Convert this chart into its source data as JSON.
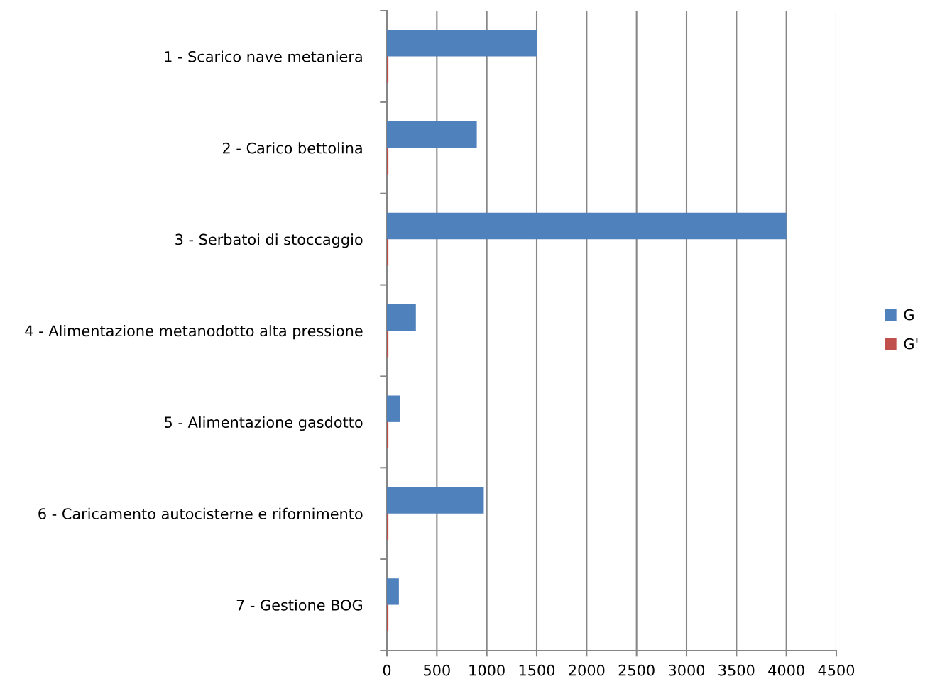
{
  "chart_data": {
    "type": "bar",
    "orientation": "horizontal",
    "categories": [
      "1 - Scarico nave metaniera",
      "2 - Carico bettolina",
      "3 - Serbatoi di stoccaggio",
      "4 - Alimentazione metanodotto alta pressione",
      "5 - Alimentazione gasdotto",
      "6 - Caricamento autocisterne e rifornimento",
      "7 - Gestione BOG"
    ],
    "series": [
      {
        "name": "G",
        "color": "#4f81bd",
        "values": [
          1500,
          900,
          4000,
          290,
          130,
          970,
          120
        ]
      },
      {
        "name": "G'",
        "color": "#c0504d",
        "values": [
          15,
          15,
          15,
          15,
          15,
          15,
          15
        ]
      }
    ],
    "xlim": [
      0,
      4500
    ],
    "xticks": [
      0,
      500,
      1000,
      1500,
      2000,
      2500,
      3000,
      3500,
      4000,
      4500
    ],
    "grid": "x",
    "legend": "right"
  }
}
